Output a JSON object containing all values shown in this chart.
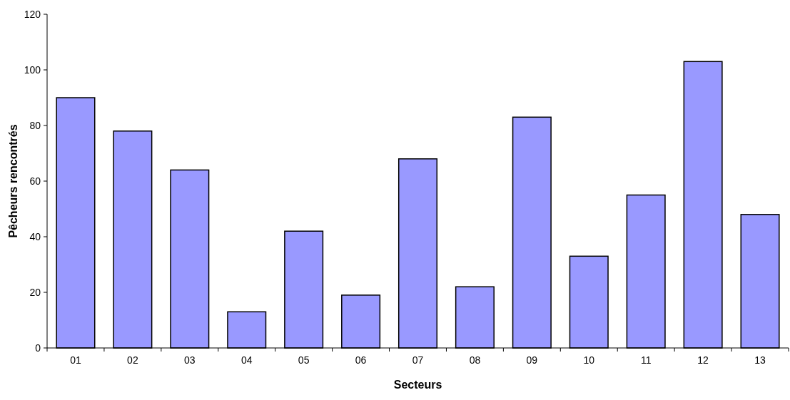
{
  "chart_data": {
    "type": "bar",
    "xlabel": "Secteurs",
    "ylabel": "Pêcheurs rencontrés",
    "categories": [
      "01",
      "02",
      "03",
      "04",
      "05",
      "06",
      "07",
      "08",
      "09",
      "10",
      "11",
      "12",
      "13"
    ],
    "values": [
      90,
      78,
      64,
      13,
      42,
      19,
      68,
      22,
      83,
      33,
      55,
      103,
      48
    ],
    "color": "#9999ff",
    "ylim": [
      0,
      120
    ],
    "yticks": [
      0,
      20,
      40,
      60,
      80,
      100,
      120
    ],
    "grid": false
  }
}
